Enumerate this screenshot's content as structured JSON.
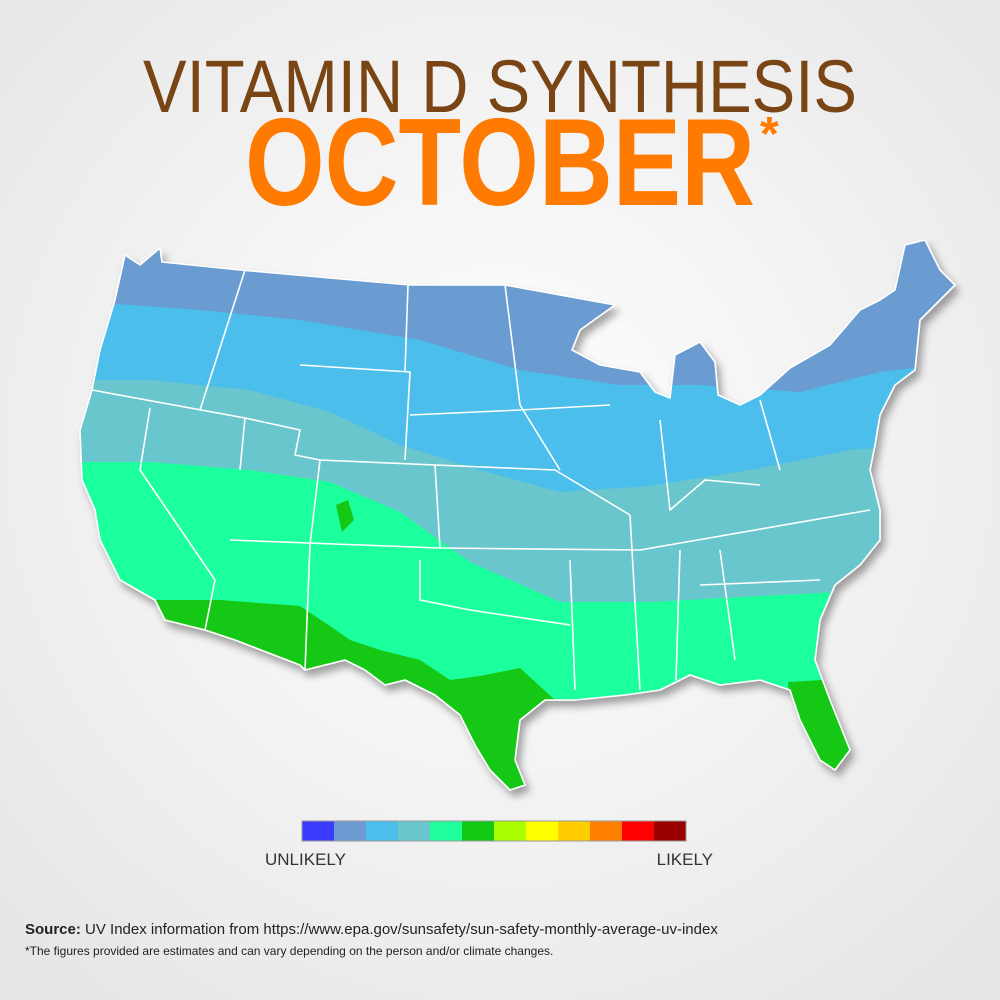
{
  "header": {
    "title": "VITAMIN D SYNTHESIS",
    "month": "OCTOBER",
    "mark": "*"
  },
  "legend": {
    "colors": [
      "#3c3cff",
      "#6b9bd1",
      "#4bbeec",
      "#69c6cc",
      "#1fff9d",
      "#12c812",
      "#aaff00",
      "#ffff00",
      "#ffcc00",
      "#ff8000",
      "#ff0000",
      "#990000"
    ],
    "low_label": "UNLIKELY",
    "high_label": "LIKELY"
  },
  "footer": {
    "source_label": "Source:",
    "source_text": "UV Index information from https://www.epa.gov/sunsafety/sun-safety-monthly-average-uv-index",
    "note": "*The figures provided are estimates and can vary depending on the person and/or climate changes."
  }
}
